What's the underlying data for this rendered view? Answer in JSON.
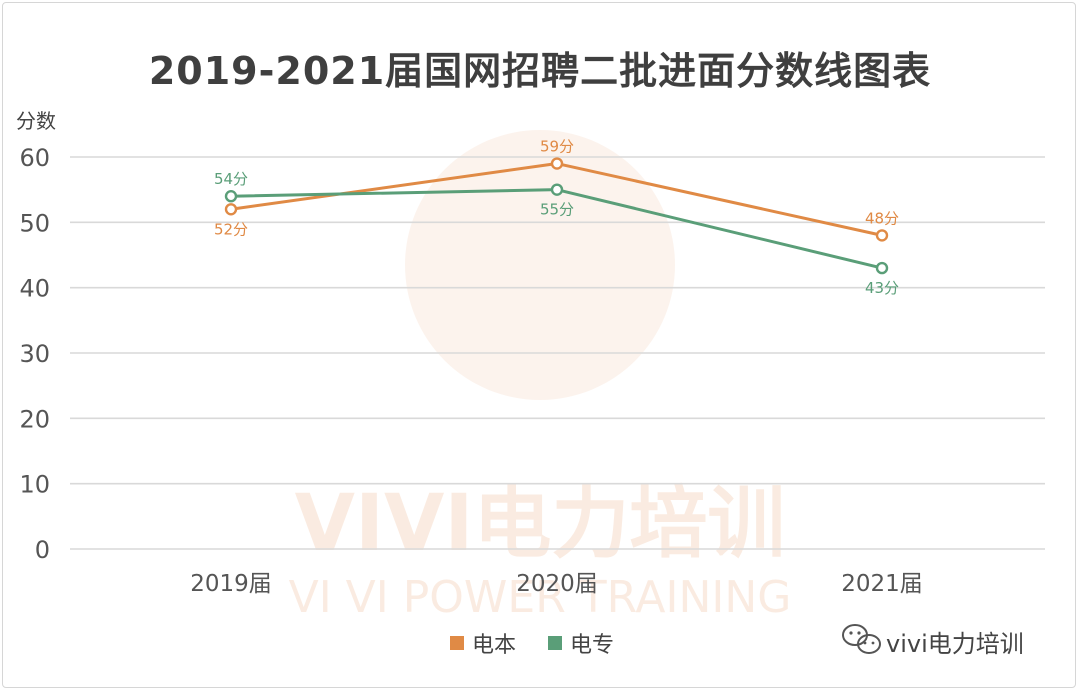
{
  "chart_data": {
    "type": "line",
    "title": "2019-2021届国网招聘二批进面分数线图表",
    "ylabel": "分数",
    "xlabel": "",
    "categories": [
      "2019届",
      "2020届",
      "2021届"
    ],
    "ylim": [
      0,
      60
    ],
    "yticks": [
      0,
      10,
      20,
      30,
      40,
      50,
      60
    ],
    "grid": true,
    "legend_position": "bottom",
    "series": [
      {
        "name": "电本",
        "values": [
          52,
          59,
          48
        ],
        "labels": [
          "52分",
          "59分",
          "48分"
        ],
        "color": "#e08a45"
      },
      {
        "name": "电专",
        "values": [
          54,
          55,
          43
        ],
        "labels": [
          "54分",
          "55分",
          "43分"
        ],
        "color": "#5a9e78"
      }
    ]
  },
  "watermark": {
    "logo_text": "VIVI电力培训",
    "subtext": "VI VI POWER TRAINING",
    "color": "#f0b48a"
  },
  "brand": {
    "icon": "wechat-icon",
    "text": "vivi电力培训"
  }
}
